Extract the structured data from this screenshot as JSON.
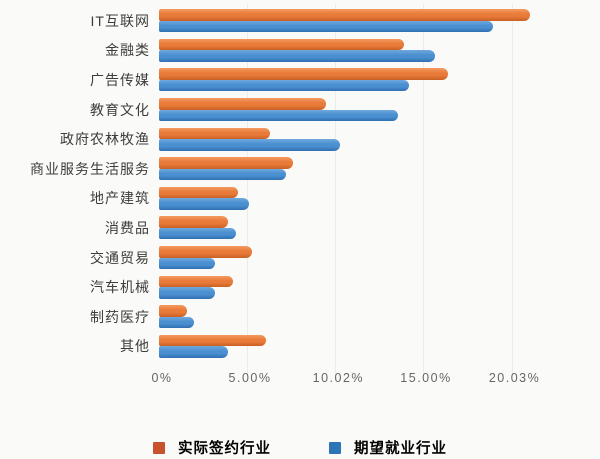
{
  "chart_data": {
    "type": "bar",
    "orientation": "horizontal",
    "title": "",
    "xlabel": "",
    "ylabel": "",
    "xlim": [
      0,
      23
    ],
    "grid": "faint-vertical-lines-at-ticks",
    "legend_position": "bottom-center",
    "categories": [
      "IT互联网",
      "金融类",
      "广告传媒",
      "教育文化",
      "政府农林牧渔",
      "商业服务生活服务",
      "地产建筑",
      "消费品",
      "交通贸易",
      "汽车机械",
      "制药医疗",
      "其他"
    ],
    "series": [
      {
        "name": "实际签约行业",
        "values": [
          21.1,
          13.9,
          16.4,
          9.5,
          6.3,
          7.6,
          4.5,
          3.9,
          5.3,
          4.2,
          1.6,
          6.1
        ],
        "color_light": "#f49a60",
        "color": "#e87b3a",
        "color_dark": "#c95f24",
        "legend_color": "#c8522e"
      },
      {
        "name": "期望就业行业",
        "values": [
          19.0,
          15.7,
          14.2,
          13.6,
          10.3,
          7.2,
          5.1,
          4.4,
          3.2,
          3.2,
          2.0,
          3.9
        ],
        "color_light": "#6fa9dd",
        "color": "#4a8fd0",
        "color_dark": "#2f6fb0",
        "legend_color": "#2e75b8"
      }
    ],
    "x_ticks": [
      {
        "label": "0%",
        "value": 0
      },
      {
        "label": "5.00%",
        "value": 5
      },
      {
        "label": "10.02%",
        "value": 10.02
      },
      {
        "label": "15.00%",
        "value": 15
      },
      {
        "label": "20.03%",
        "value": 20.03
      }
    ]
  },
  "colors": {
    "background": "#fafaf8",
    "label_text": "#3d3d3d",
    "axis_text": "#666666",
    "gridline": "#ececea"
  }
}
